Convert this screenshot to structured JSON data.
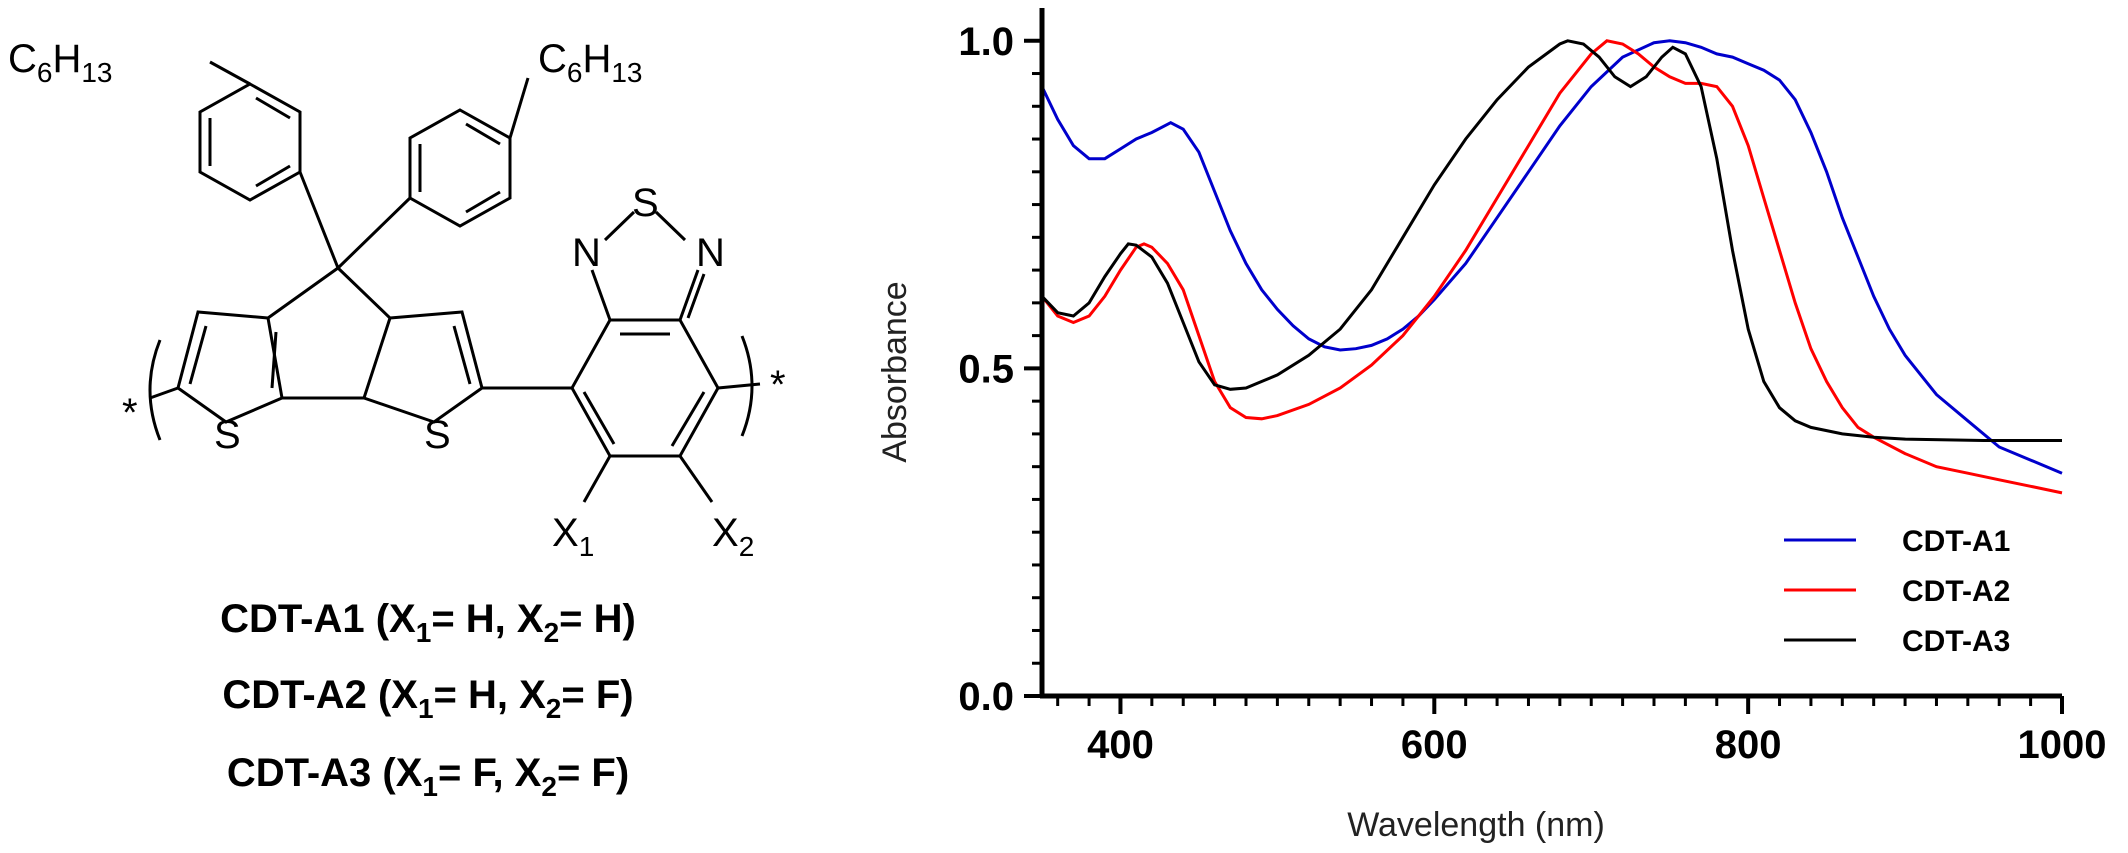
{
  "structure": {
    "substituent_top_left": "C6H13",
    "substituent_top_right": "C6H13",
    "atom_sulfur": "S",
    "atom_nitrogen": "N",
    "end_group": "*",
    "x1_label": "X1",
    "x2_label": "X2",
    "compounds": [
      {
        "name": "CDT-A1",
        "x1": "H",
        "x2": "H"
      },
      {
        "name": "CDT-A2",
        "x1": "H",
        "x2": "F"
      },
      {
        "name": "CDT-A3",
        "x1": "F",
        "x2": "F"
      }
    ]
  },
  "chart_data": {
    "type": "line",
    "xlabel": "Wavelength (nm)",
    "ylabel": "Absorbance",
    "xlim": [
      350,
      1000
    ],
    "ylim": [
      0,
      1.05
    ],
    "xticks": [
      400,
      600,
      800,
      1000
    ],
    "yticks": [
      0.0,
      0.5,
      1.0
    ],
    "ytick_labels": [
      "0.0",
      "0.5",
      "1.0"
    ],
    "grid": false,
    "legend_position": "bottom-right",
    "series": [
      {
        "name": "CDT-A1",
        "color": "#0000cc",
        "points": [
          [
            350,
            0.93
          ],
          [
            360,
            0.88
          ],
          [
            370,
            0.84
          ],
          [
            380,
            0.82
          ],
          [
            390,
            0.82
          ],
          [
            400,
            0.835
          ],
          [
            410,
            0.85
          ],
          [
            420,
            0.86
          ],
          [
            432,
            0.875
          ],
          [
            440,
            0.865
          ],
          [
            450,
            0.83
          ],
          [
            460,
            0.77
          ],
          [
            470,
            0.71
          ],
          [
            480,
            0.66
          ],
          [
            490,
            0.62
          ],
          [
            500,
            0.59
          ],
          [
            510,
            0.565
          ],
          [
            520,
            0.545
          ],
          [
            530,
            0.533
          ],
          [
            540,
            0.528
          ],
          [
            550,
            0.53
          ],
          [
            560,
            0.535
          ],
          [
            570,
            0.545
          ],
          [
            580,
            0.56
          ],
          [
            590,
            0.58
          ],
          [
            600,
            0.605
          ],
          [
            620,
            0.66
          ],
          [
            640,
            0.73
          ],
          [
            660,
            0.8
          ],
          [
            680,
            0.87
          ],
          [
            700,
            0.93
          ],
          [
            720,
            0.975
          ],
          [
            740,
            0.997
          ],
          [
            750,
            1.0
          ],
          [
            760,
            0.997
          ],
          [
            770,
            0.99
          ],
          [
            780,
            0.98
          ],
          [
            790,
            0.975
          ],
          [
            800,
            0.965
          ],
          [
            810,
            0.955
          ],
          [
            820,
            0.94
          ],
          [
            830,
            0.91
          ],
          [
            840,
            0.86
          ],
          [
            850,
            0.8
          ],
          [
            860,
            0.73
          ],
          [
            870,
            0.67
          ],
          [
            880,
            0.61
          ],
          [
            890,
            0.56
          ],
          [
            900,
            0.52
          ],
          [
            920,
            0.46
          ],
          [
            940,
            0.42
          ],
          [
            960,
            0.38
          ],
          [
            980,
            0.36
          ],
          [
            1000,
            0.34
          ]
        ]
      },
      {
        "name": "CDT-A2",
        "color": "#ff0000",
        "points": [
          [
            350,
            0.61
          ],
          [
            360,
            0.58
          ],
          [
            370,
            0.57
          ],
          [
            380,
            0.58
          ],
          [
            390,
            0.61
          ],
          [
            400,
            0.65
          ],
          [
            410,
            0.685
          ],
          [
            415,
            0.69
          ],
          [
            420,
            0.685
          ],
          [
            430,
            0.66
          ],
          [
            440,
            0.62
          ],
          [
            450,
            0.55
          ],
          [
            460,
            0.48
          ],
          [
            470,
            0.44
          ],
          [
            480,
            0.425
          ],
          [
            490,
            0.423
          ],
          [
            500,
            0.428
          ],
          [
            520,
            0.445
          ],
          [
            540,
            0.47
          ],
          [
            560,
            0.505
          ],
          [
            580,
            0.55
          ],
          [
            600,
            0.61
          ],
          [
            620,
            0.68
          ],
          [
            640,
            0.76
          ],
          [
            660,
            0.84
          ],
          [
            680,
            0.92
          ],
          [
            700,
            0.98
          ],
          [
            710,
            1.0
          ],
          [
            720,
            0.995
          ],
          [
            730,
            0.98
          ],
          [
            740,
            0.96
          ],
          [
            750,
            0.945
          ],
          [
            760,
            0.935
          ],
          [
            770,
            0.935
          ],
          [
            780,
            0.93
          ],
          [
            790,
            0.9
          ],
          [
            800,
            0.84
          ],
          [
            810,
            0.76
          ],
          [
            820,
            0.68
          ],
          [
            830,
            0.6
          ],
          [
            840,
            0.53
          ],
          [
            850,
            0.48
          ],
          [
            860,
            0.44
          ],
          [
            870,
            0.41
          ],
          [
            880,
            0.395
          ],
          [
            900,
            0.37
          ],
          [
            920,
            0.35
          ],
          [
            940,
            0.34
          ],
          [
            960,
            0.33
          ],
          [
            980,
            0.32
          ],
          [
            1000,
            0.31
          ]
        ]
      },
      {
        "name": "CDT-A3",
        "color": "#000000",
        "points": [
          [
            350,
            0.61
          ],
          [
            360,
            0.585
          ],
          [
            370,
            0.58
          ],
          [
            380,
            0.6
          ],
          [
            390,
            0.64
          ],
          [
            400,
            0.675
          ],
          [
            405,
            0.69
          ],
          [
            410,
            0.688
          ],
          [
            420,
            0.67
          ],
          [
            430,
            0.63
          ],
          [
            440,
            0.57
          ],
          [
            450,
            0.51
          ],
          [
            460,
            0.475
          ],
          [
            470,
            0.468
          ],
          [
            480,
            0.47
          ],
          [
            500,
            0.49
          ],
          [
            520,
            0.52
          ],
          [
            540,
            0.56
          ],
          [
            560,
            0.62
          ],
          [
            580,
            0.7
          ],
          [
            600,
            0.78
          ],
          [
            620,
            0.85
          ],
          [
            640,
            0.91
          ],
          [
            660,
            0.96
          ],
          [
            680,
            0.995
          ],
          [
            685,
            1.0
          ],
          [
            695,
            0.995
          ],
          [
            705,
            0.975
          ],
          [
            715,
            0.945
          ],
          [
            725,
            0.93
          ],
          [
            735,
            0.945
          ],
          [
            745,
            0.975
          ],
          [
            752,
            0.99
          ],
          [
            760,
            0.98
          ],
          [
            770,
            0.93
          ],
          [
            780,
            0.82
          ],
          [
            790,
            0.68
          ],
          [
            800,
            0.56
          ],
          [
            810,
            0.48
          ],
          [
            820,
            0.44
          ],
          [
            830,
            0.42
          ],
          [
            840,
            0.41
          ],
          [
            860,
            0.4
          ],
          [
            880,
            0.395
          ],
          [
            900,
            0.392
          ],
          [
            950,
            0.39
          ],
          [
            1000,
            0.39
          ]
        ]
      }
    ]
  }
}
